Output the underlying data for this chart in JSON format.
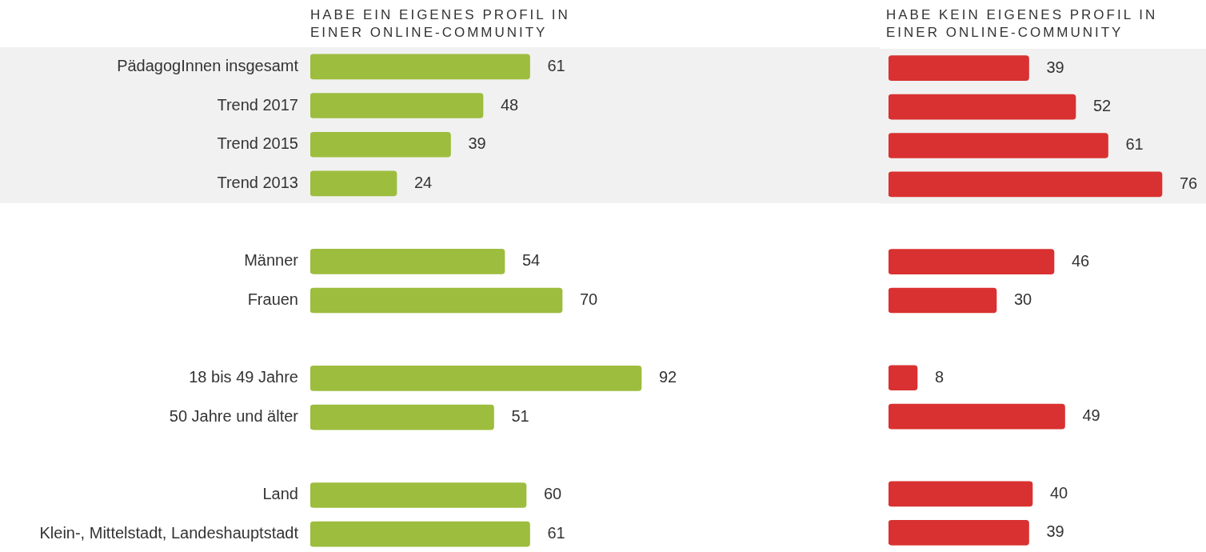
{
  "chart_data": [
    {
      "type": "bar",
      "orientation": "horizontal",
      "title": "HABE EIN EIGENES PROFIL IN EINER ONLINE-COMMUNITY",
      "categories": [
        "PädagogInnen insgesamt",
        "Trend 2017",
        "Trend 2015",
        "Trend 2013",
        null,
        "Männer",
        "Frauen",
        null,
        "18 bis 49 Jahre",
        "50 Jahre und älter",
        null,
        "Land",
        "Klein-, Mittelstadt, Landeshauptstadt"
      ],
      "values": [
        61,
        48,
        39,
        24,
        null,
        54,
        70,
        null,
        92,
        51,
        null,
        60,
        61
      ],
      "color": "#9dbd3e",
      "tick_labels": "y",
      "legend": false,
      "data_labels": true,
      "bands": [
        {
          "axis": "y",
          "from": "PädagogInnen insgesamt",
          "to": "Trend 2013",
          "color": "#f1f1f1"
        }
      ]
    },
    {
      "type": "bar",
      "orientation": "horizontal",
      "title": "HABE KEIN EIGENES PROFIL IN EINER ONLINE-COMMUNITY",
      "categories": [
        "PädagogInnen insgesamt",
        "Trend 2017",
        "Trend 2015",
        "Trend 2013",
        null,
        "Männer",
        "Frauen",
        null,
        "18 bis 49 Jahre",
        "50 Jahre und älter",
        null,
        "Land",
        "Klein-, Mittelstadt, Landeshauptstadt"
      ],
      "values": [
        39,
        52,
        61,
        76,
        null,
        46,
        30,
        null,
        8,
        49,
        null,
        40,
        39
      ],
      "color": "#d93131",
      "tick_labels": false,
      "legend": false,
      "data_labels": true,
      "bands": [
        {
          "axis": "y",
          "from": "PädagogInnen insgesamt",
          "to": "Trend 2013",
          "color": "#f1f1f1"
        }
      ]
    }
  ]
}
